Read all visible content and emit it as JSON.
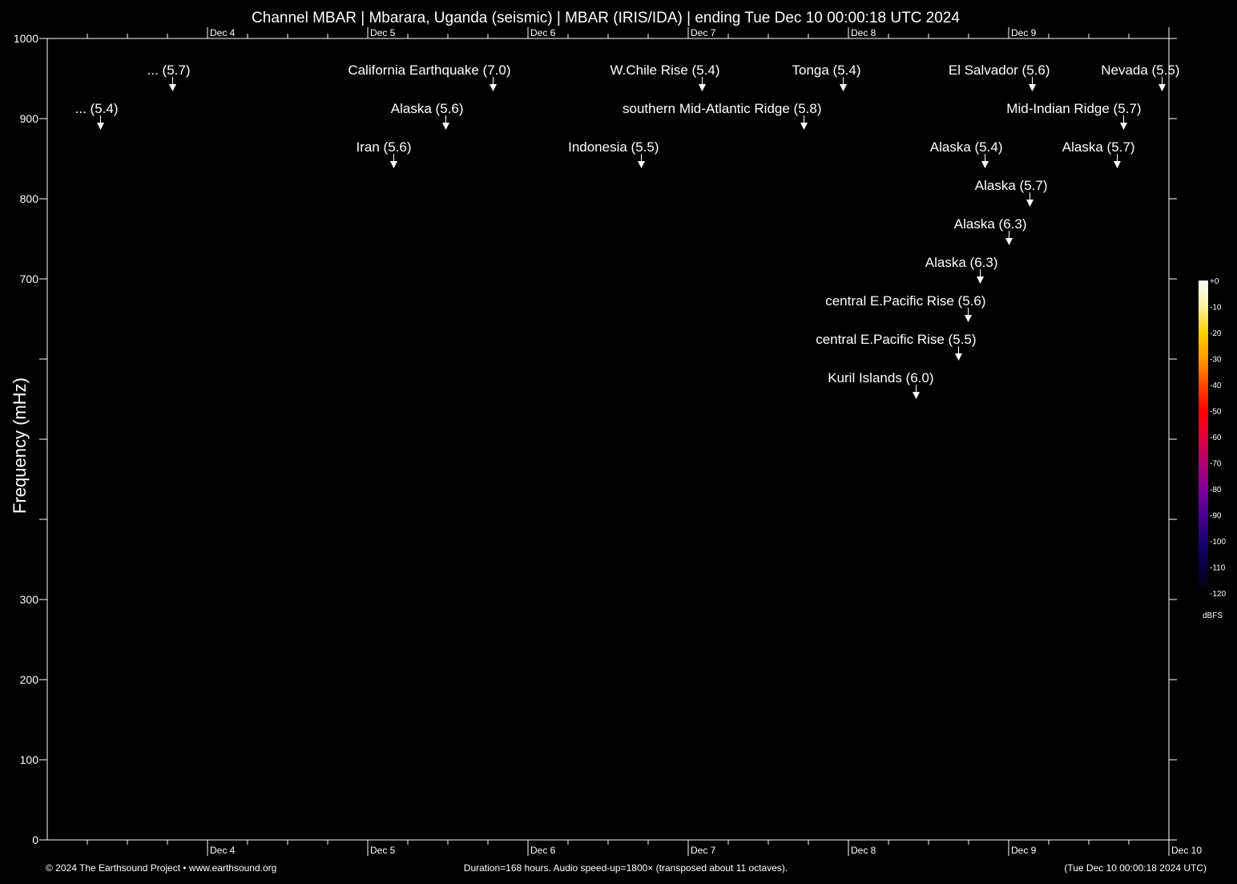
{
  "chart_data": {
    "type": "heatmap",
    "title": "Channel MBAR | Mbarara, Uganda (seismic) | MBAR (IRIS/IDA) | ending Tue Dec 10 00:00:18 UTC 2024",
    "ylabel": "Frequency (mHz)",
    "xlabel": "",
    "ylim": [
      0,
      1000
    ],
    "y_tick_labels": [
      "0",
      "100",
      "200",
      "300",
      "700",
      "800",
      "900",
      "1000"
    ],
    "y_ticks_all": [
      0,
      100,
      200,
      300,
      400,
      500,
      600,
      700,
      800,
      900,
      1000
    ],
    "x_range": [
      "2024-12-03T00:00:18",
      "2024-12-10T00:00:18"
    ],
    "x_tick_labels": [
      "Dec  4",
      "Dec  5",
      "Dec  6",
      "Dec  7",
      "Dec  8",
      "Dec  9",
      "Dec 10"
    ],
    "spectrogram": "empty (all black)",
    "colorbar": {
      "unit": "dBFS",
      "tick_labels": [
        "+0",
        "-10",
        "-20",
        "-30",
        "-40",
        "-50",
        "-60",
        "-70",
        "-80",
        "-90",
        "-100",
        "-110",
        "-120"
      ],
      "colors": [
        "#ffffff",
        "#fff2a0",
        "#ffd000",
        "#ff9a00",
        "#ff4a00",
        "#ff0000",
        "#e0003a",
        "#b00070",
        "#80009a",
        "#4a0090",
        "#1a0070",
        "#080040",
        "#000000"
      ]
    },
    "events": [
      {
        "label": "... (5.4)",
        "time": "2024-12-03T07:55",
        "lane": 2
      },
      {
        "label": "... (5.7)",
        "time": "2024-12-03T18:43",
        "lane": 1
      },
      {
        "label": "Iran (5.6)",
        "time": "2024-12-05T03:50",
        "lane": 3
      },
      {
        "label": "Alaska (5.6)",
        "time": "2024-12-05T11:38",
        "lane": 2
      },
      {
        "label": "California Earthquake (7.0)",
        "time": "2024-12-05T18:43",
        "lane": 1
      },
      {
        "label": "Indonesia (5.5)",
        "time": "2024-12-06T16:55",
        "lane": 3
      },
      {
        "label": "W.Chile Rise (5.4)",
        "time": "2024-12-07T02:02",
        "lane": 1
      },
      {
        "label": "southern Mid-Atlantic Ridge (5.8)",
        "time": "2024-12-07T17:17",
        "lane": 2
      },
      {
        "label": "Tonga (5.4)",
        "time": "2024-12-07T23:10",
        "lane": 1
      },
      {
        "label": "Kuril Islands (6.0)",
        "time": "2024-12-08T10:05",
        "lane": 9
      },
      {
        "label": "central E.Pacific Rise (5.5)",
        "time": "2024-12-08T16:26",
        "lane": 8
      },
      {
        "label": "central E.Pacific Rise (5.6)",
        "time": "2024-12-08T17:53",
        "lane": 7
      },
      {
        "label": "Alaska (6.3)",
        "time": "2024-12-08T19:41",
        "lane": 6
      },
      {
        "label": "Alaska (5.4)",
        "time": "2024-12-08T20:24",
        "lane": 3
      },
      {
        "label": "Alaska (6.3)",
        "time": "2024-12-09T00:00",
        "lane": 5
      },
      {
        "label": "Alaska (5.7)",
        "time": "2024-12-09T03:07",
        "lane": 4
      },
      {
        "label": "El Salvador (5.6)",
        "time": "2024-12-09T03:29",
        "lane": 1
      },
      {
        "label": "Alaska (5.7)",
        "time": "2024-12-09T16:12",
        "lane": 3
      },
      {
        "label": "Mid-Indian Ridge (5.7)",
        "time": "2024-12-09T17:10",
        "lane": 2
      },
      {
        "label": "Nevada (5.5)",
        "time": "2024-12-09T22:55",
        "lane": 1
      }
    ]
  },
  "footer": {
    "copyright": "© 2024 The Earthsound Project • www.earthsound.org",
    "duration": "Duration=168 hours. Audio speed-up=1800× (transposed about 11 octaves).",
    "end_time": "(Tue Dec 10 00:00:18 2024 UTC)"
  }
}
